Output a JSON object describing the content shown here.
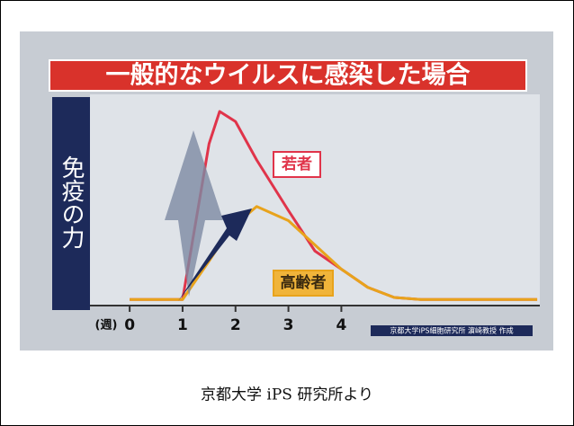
{
  "chart_data": {
    "type": "line",
    "title": "一般的なウイルスに感染した場合",
    "y_label": "免疫の力",
    "x_label": "(週)",
    "x": [
      0,
      1,
      1.5,
      1.7,
      2,
      2.4,
      3,
      3.5,
      4,
      4.5,
      5,
      5.5,
      7.7
    ],
    "xlim": [
      -0.75,
      7.75
    ],
    "xticks": [
      0,
      1,
      2,
      3,
      4
    ],
    "ylim": [
      0,
      100
    ],
    "series": [
      {
        "name": "若者",
        "color": "#e0344a",
        "values": [
          3,
          3,
          80,
          96,
          91,
          72,
          47,
          27,
          18,
          9,
          4,
          3,
          3
        ]
      },
      {
        "name": "高齢者",
        "color": "#e8a31c",
        "values": [
          3,
          3,
          22,
          30,
          40,
          49,
          42,
          30,
          18,
          9,
          4,
          3,
          3
        ]
      }
    ],
    "credit": "京都大学iPS細胞研究所 濵崎教授 作成",
    "caption": "京都大学 iPS 研究所より"
  }
}
